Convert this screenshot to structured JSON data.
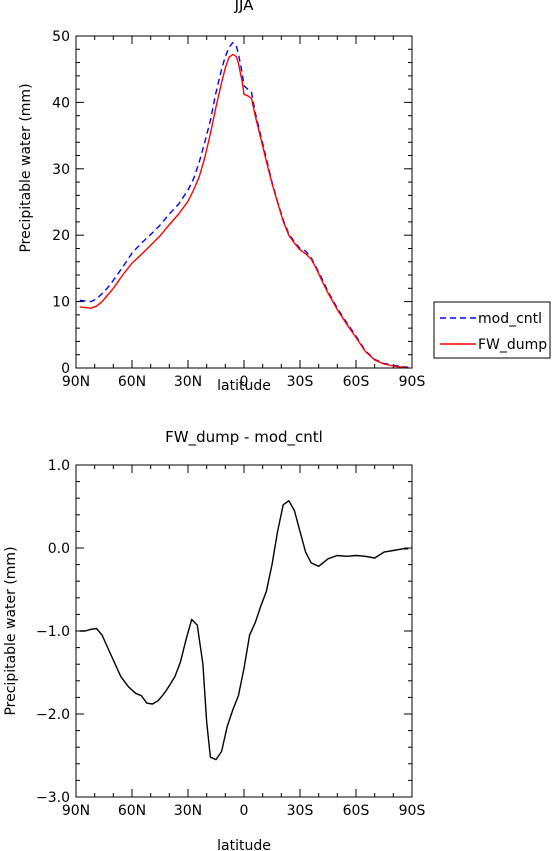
{
  "chart_data": [
    {
      "type": "line",
      "title": "JJA",
      "xlabel": "latitude",
      "ylabel": "Precipitable water (mm)",
      "xlim": [
        90,
        -90
      ],
      "ylim": [
        0,
        50
      ],
      "xticks": [
        90,
        60,
        30,
        0,
        -30,
        -60,
        -90
      ],
      "xtick_labels": [
        "90N",
        "60N",
        "30N",
        "0",
        "30S",
        "60S",
        "90S"
      ],
      "yticks": [
        0,
        10,
        20,
        30,
        40,
        50
      ],
      "ytick_labels": [
        "0",
        "10",
        "20",
        "30",
        "40",
        "50"
      ],
      "grid": false,
      "legend": "outside-right",
      "series": [
        {
          "name": "mod_cntl",
          "color": "#0000ff",
          "dash": "dashed",
          "x": [
            88,
            85,
            82,
            79,
            76,
            73,
            70,
            65,
            60,
            55,
            50,
            45,
            40,
            35,
            30,
            27,
            24,
            21,
            18,
            15,
            12,
            10,
            8,
            6,
            5,
            4,
            3,
            1,
            0,
            -2,
            -4,
            -6,
            -9,
            -12,
            -15,
            -18,
            -21,
            -24,
            -27,
            -30,
            -33,
            -36,
            -39,
            -42,
            -45,
            -50,
            -55,
            -60,
            -65,
            -70,
            -75,
            -80,
            -85,
            -88
          ],
          "values": [
            10.2,
            10.1,
            10.0,
            10.4,
            11.2,
            12.1,
            13.2,
            15.2,
            17.3,
            18.8,
            20.1,
            21.5,
            23.2,
            24.7,
            26.8,
            28.5,
            31.0,
            34.0,
            37.3,
            41.5,
            45.0,
            46.9,
            48.3,
            49.0,
            48.7,
            48.4,
            47.3,
            44.5,
            42.5,
            42.0,
            41.5,
            38.5,
            35.0,
            31.5,
            28.0,
            25.0,
            22.3,
            20.2,
            19.0,
            18.0,
            17.6,
            16.6,
            15.0,
            13.3,
            11.5,
            9.0,
            6.8,
            4.8,
            2.6,
            1.3,
            0.7,
            0.4,
            0.2,
            0.1
          ]
        },
        {
          "name": "FW_dump",
          "color": "#ff0000",
          "dash": "solid",
          "x": [
            88,
            85,
            82,
            79,
            76,
            73,
            70,
            65,
            60,
            55,
            50,
            45,
            40,
            35,
            30,
            27,
            24,
            21,
            18,
            15,
            12,
            10,
            8,
            6,
            5,
            4,
            3,
            1,
            0,
            -2,
            -4,
            -6,
            -9,
            -12,
            -15,
            -18,
            -21,
            -24,
            -27,
            -30,
            -33,
            -36,
            -39,
            -42,
            -45,
            -50,
            -55,
            -60,
            -65,
            -70,
            -75,
            -80,
            -85,
            -88
          ],
          "values": [
            9.2,
            9.1,
            9.0,
            9.3,
            10.0,
            11.0,
            12.0,
            14.0,
            15.8,
            17.1,
            18.5,
            19.9,
            21.6,
            23.2,
            25.1,
            26.8,
            28.8,
            31.7,
            35.3,
            39.3,
            43.0,
            45.2,
            46.8,
            47.2,
            47.1,
            46.8,
            45.9,
            43.2,
            41.2,
            41.0,
            40.6,
            38.0,
            34.6,
            31.1,
            27.8,
            24.9,
            22.1,
            20.0,
            18.8,
            17.8,
            17.2,
            16.4,
            14.8,
            13.0,
            11.3,
            8.8,
            6.6,
            4.6,
            2.5,
            1.2,
            0.6,
            0.3,
            0.1,
            0.0
          ]
        }
      ]
    },
    {
      "type": "line",
      "title": "FW_dump - mod_cntl",
      "xlabel": "latitude",
      "ylabel": "Precipitable water (mm)",
      "xlim": [
        90,
        -90
      ],
      "ylim": [
        -3.0,
        1.0
      ],
      "xticks": [
        90,
        60,
        30,
        0,
        -30,
        -60,
        -90
      ],
      "xtick_labels": [
        "90N",
        "60N",
        "30N",
        "0",
        "30S",
        "60S",
        "90S"
      ],
      "yticks": [
        -3.0,
        -2.0,
        -1.0,
        0.0,
        1.0
      ],
      "ytick_labels": [
        "−3.0",
        "−2.0",
        "−1.0",
        "0.0",
        "1.0"
      ],
      "grid": false,
      "series": [
        {
          "color": "#000000",
          "dash": "solid",
          "x": [
            88,
            85,
            82,
            79,
            76,
            73,
            70,
            66,
            62,
            58,
            55,
            52,
            49,
            46,
            43,
            40,
            37,
            34,
            31,
            28,
            25,
            22,
            20,
            18,
            15,
            12,
            9,
            6,
            3,
            0,
            -3,
            -6,
            -9,
            -12,
            -15,
            -18,
            -21,
            -24,
            -27,
            -30,
            -33,
            -36,
            -40,
            -45,
            -50,
            -55,
            -60,
            -65,
            -70,
            -75,
            -80,
            -85,
            -88
          ],
          "values": [
            -1.0,
            -1.0,
            -0.98,
            -0.97,
            -1.05,
            -1.2,
            -1.35,
            -1.55,
            -1.67,
            -1.75,
            -1.78,
            -1.87,
            -1.88,
            -1.84,
            -1.76,
            -1.66,
            -1.55,
            -1.37,
            -1.1,
            -0.86,
            -0.93,
            -1.4,
            -2.1,
            -2.52,
            -2.55,
            -2.45,
            -2.15,
            -1.95,
            -1.78,
            -1.45,
            -1.05,
            -0.9,
            -0.7,
            -0.52,
            -0.2,
            0.2,
            0.52,
            0.57,
            0.45,
            0.2,
            -0.05,
            -0.18,
            -0.22,
            -0.13,
            -0.09,
            -0.1,
            -0.09,
            -0.1,
            -0.12,
            -0.05,
            -0.03,
            -0.01,
            -0.01
          ]
        }
      ]
    }
  ]
}
